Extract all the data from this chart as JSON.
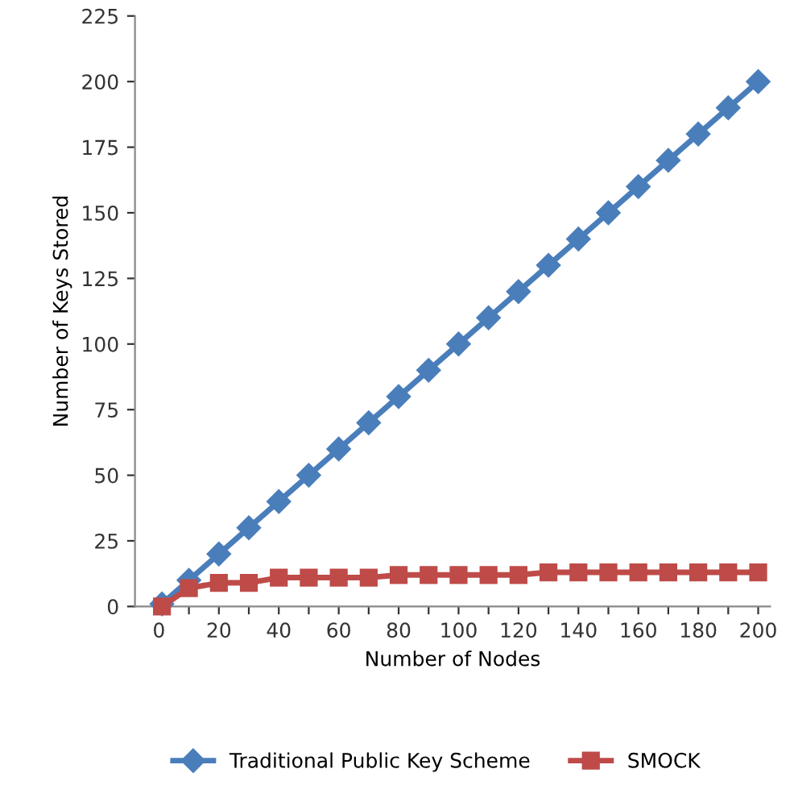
{
  "chart_data": {
    "type": "line",
    "xlabel": "Number of Nodes",
    "ylabel": "Number of Keys Stored",
    "x": [
      1,
      10,
      20,
      30,
      40,
      50,
      60,
      70,
      80,
      90,
      100,
      110,
      120,
      130,
      140,
      150,
      160,
      170,
      180,
      190,
      200
    ],
    "series": [
      {
        "name": "Traditional Public Key Scheme",
        "color": "#4a7ebb",
        "marker": "diamond",
        "values": [
          1,
          10,
          20,
          30,
          40,
          50,
          60,
          70,
          80,
          90,
          100,
          110,
          120,
          130,
          140,
          150,
          160,
          170,
          180,
          190,
          200
        ]
      },
      {
        "name": "SMOCK",
        "color": "#be4b48",
        "marker": "square",
        "values": [
          0,
          7,
          9,
          9,
          11,
          11,
          11,
          11,
          12,
          12,
          12,
          12,
          12,
          13,
          13,
          13,
          13,
          13,
          13,
          13,
          13
        ]
      }
    ],
    "xlim": [
      -8,
      204
    ],
    "ylim": [
      0,
      225
    ],
    "xticks": [
      0,
      {
        "value": 10,
        "label": null
      },
      20,
      {
        "value": 30,
        "label": null
      },
      40,
      {
        "value": 50,
        "label": null
      },
      60,
      {
        "value": 70,
        "label": null
      },
      80,
      {
        "value": 90,
        "label": null
      },
      100,
      {
        "value": 110,
        "label": null
      },
      120,
      {
        "value": 130,
        "label": null
      },
      140,
      {
        "value": 150,
        "label": null
      },
      160,
      {
        "value": 170,
        "label": null
      },
      180,
      {
        "value": 190,
        "label": null
      },
      200
    ],
    "yticks": [
      0,
      25,
      50,
      75,
      100,
      125,
      150,
      175,
      200,
      225
    ],
    "grid": false,
    "legend": "bottom",
    "line_style": "solid"
  }
}
